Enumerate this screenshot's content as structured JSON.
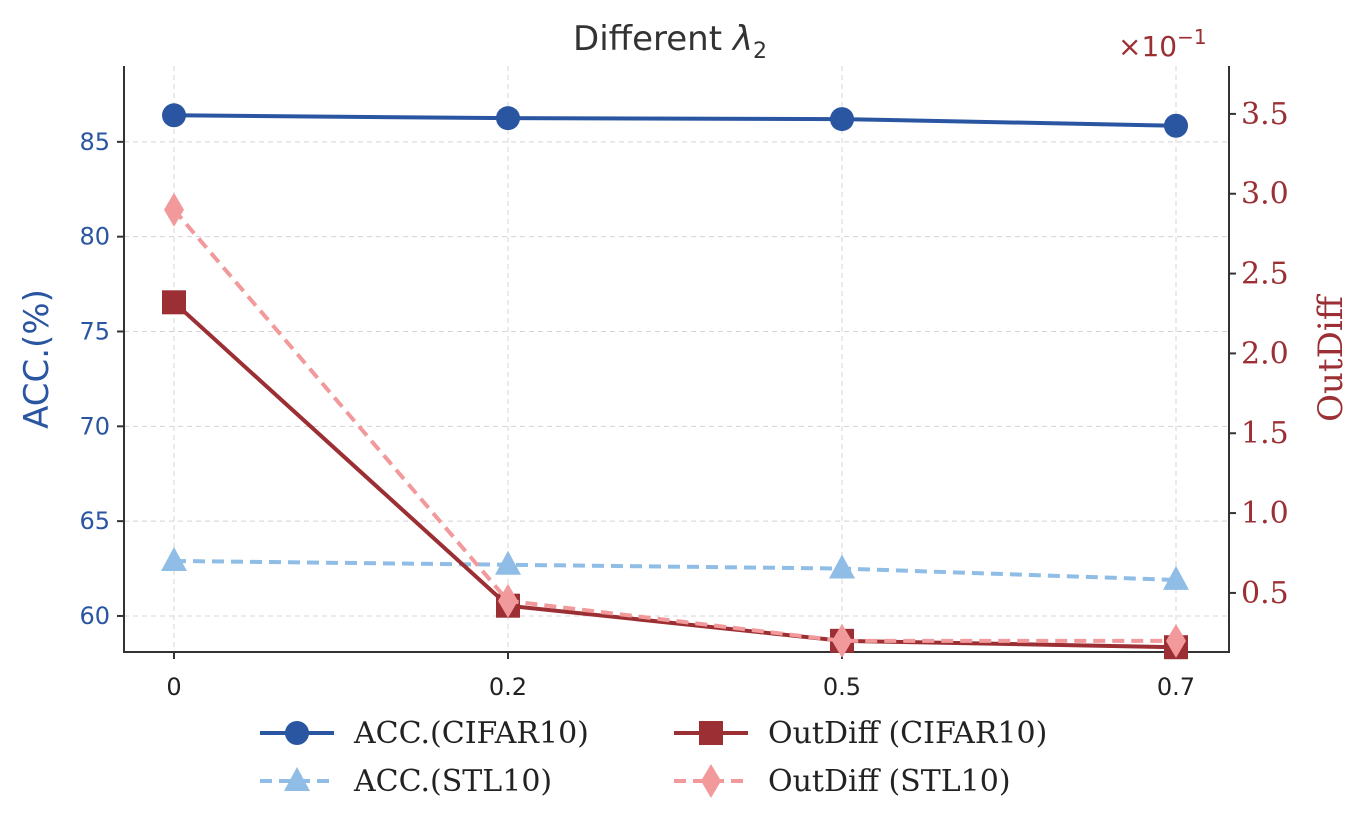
{
  "chart_data": {
    "type": "line",
    "title": "Different",
    "title_symbol": "λ",
    "title_subscript": "2",
    "categories": [
      "0",
      "0.2",
      "0.5",
      "0.7"
    ],
    "y_left": {
      "label": "ACC.(%)",
      "ticks": [
        "60",
        "65",
        "70",
        "75",
        "80",
        "85"
      ],
      "tick_values": [
        60,
        65,
        70,
        75,
        80,
        85
      ],
      "range": [
        58.1,
        89.0
      ],
      "color": "#2a56a1"
    },
    "y_right": {
      "label": "OutDiff",
      "ticks": [
        "0.5",
        "1.0",
        "1.5",
        "2.0",
        "2.5",
        "3.0",
        "3.5"
      ],
      "tick_values": [
        0.5,
        1.0,
        1.5,
        2.0,
        2.5,
        3.0,
        3.5
      ],
      "range": [
        0.13,
        3.8
      ],
      "offset_base": "×10",
      "offset_exp": "−1",
      "color": "#9b2f33"
    },
    "series": [
      {
        "name": "ACC.(CIFAR10)",
        "axis": "left",
        "values": [
          86.4,
          86.25,
          86.2,
          85.85
        ],
        "color": "#2a56a1",
        "dash": "solid",
        "marker": "circle"
      },
      {
        "name": "ACC.(STL10)",
        "axis": "left",
        "values": [
          62.9,
          62.7,
          62.5,
          61.9
        ],
        "color": "#8fbde6",
        "dash": "dashed",
        "marker": "triangle"
      },
      {
        "name": "OutDiff (CIFAR10)",
        "axis": "right",
        "values": [
          2.32,
          0.42,
          0.2,
          0.16
        ],
        "color": "#9b2f33",
        "dash": "solid",
        "marker": "square"
      },
      {
        "name": "OutDiff (STL10)",
        "axis": "right",
        "values": [
          2.9,
          0.45,
          0.2,
          0.2
        ],
        "color": "#f1999b",
        "dash": "dashed",
        "marker": "diamond"
      }
    ],
    "grid": true,
    "legend": "bottom-center"
  }
}
